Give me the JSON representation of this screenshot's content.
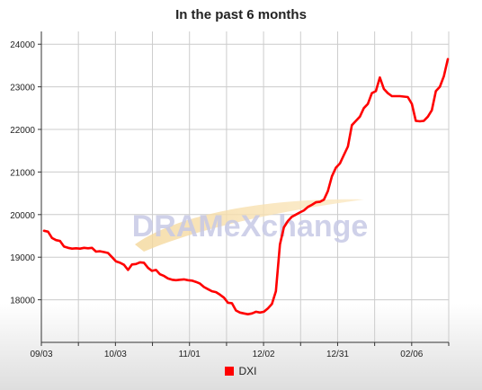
{
  "chart_data": {
    "type": "line",
    "title": "In the past 6 months",
    "watermark": "DRAMeXchange",
    "xlabel": "",
    "ylabel": "",
    "ylim": [
      17000,
      24300
    ],
    "yticks": [
      18000,
      19000,
      20000,
      21000,
      22000,
      23000,
      24000
    ],
    "ytick_labels": [
      "18000",
      "19000",
      "20000",
      "21000",
      "22000",
      "23000",
      "24000"
    ],
    "xticks": [
      "09/03",
      "10/03",
      "11/01",
      "12/02",
      "12/31",
      "02/06"
    ],
    "grid": true,
    "legend_position": "bottom",
    "series": [
      {
        "name": "DXI",
        "color": "#ff0000",
        "values": [
          19620,
          19600,
          19450,
          19400,
          19380,
          19250,
          19220,
          19200,
          19210,
          19200,
          19220,
          19210,
          19220,
          19130,
          19140,
          19120,
          19100,
          19000,
          18900,
          18870,
          18820,
          18700,
          18830,
          18840,
          18880,
          18870,
          18750,
          18680,
          18700,
          18600,
          18560,
          18500,
          18470,
          18460,
          18470,
          18480,
          18460,
          18450,
          18420,
          18380,
          18300,
          18250,
          18200,
          18180,
          18120,
          18050,
          17930,
          17920,
          17750,
          17700,
          17680,
          17660,
          17680,
          17720,
          17700,
          17720,
          17800,
          17900,
          18200,
          19300,
          19700,
          19850,
          19950,
          20000,
          20050,
          20100,
          20180,
          20230,
          20290,
          20300,
          20350,
          20550,
          20900,
          21100,
          21200,
          21400,
          21600,
          22100,
          22200,
          22300,
          22500,
          22600,
          22850,
          22900,
          23220,
          22950,
          22850,
          22780,
          22780,
          22780,
          22770,
          22760,
          22600,
          22200,
          22190,
          22200,
          22300,
          22450,
          22900,
          23000,
          23250,
          23650
        ]
      }
    ]
  }
}
